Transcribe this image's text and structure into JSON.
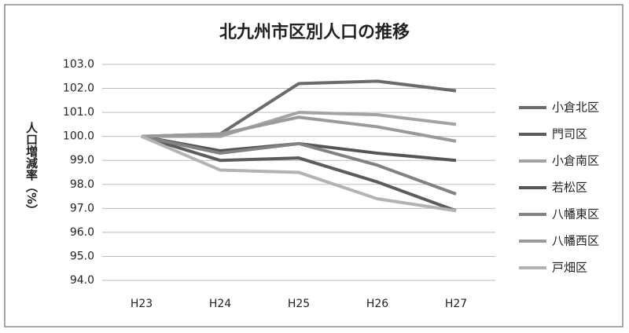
{
  "chart_data": {
    "type": "line",
    "title": "北九州市区別人口の推移",
    "y_label": "人口増減率（%）",
    "categories": [
      "H23",
      "H24",
      "H25",
      "H26",
      "H27"
    ],
    "ylim": [
      94,
      103
    ],
    "yticks": [
      {
        "value": 94,
        "label": "94.0"
      },
      {
        "value": 95,
        "label": "95.0"
      },
      {
        "value": 96,
        "label": "96.0"
      },
      {
        "value": 97,
        "label": "97.0"
      },
      {
        "value": 98,
        "label": "98.0"
      },
      {
        "value": 99,
        "label": "99.0"
      },
      {
        "value": 100,
        "label": "100.0"
      },
      {
        "value": 101,
        "label": "101.0"
      },
      {
        "value": 102,
        "label": "102.0"
      },
      {
        "value": 103,
        "label": "103.0"
      }
    ],
    "grid": true,
    "legend": "right",
    "series": [
      {
        "name": "小倉北区",
        "color": "#6b6b6b",
        "values": [
          100,
          100.1,
          102.2,
          102.3,
          101.9
        ]
      },
      {
        "name": "門司区",
        "color": "#5c5c5c",
        "values": [
          100,
          99.0,
          99.1,
          98.1,
          96.9
        ]
      },
      {
        "name": "小倉南区",
        "color": "#a3a3a3",
        "values": [
          100,
          100.0,
          101.0,
          100.9,
          100.5
        ]
      },
      {
        "name": "若松区",
        "color": "#555555",
        "values": [
          100,
          99.4,
          99.7,
          99.3,
          99.0
        ]
      },
      {
        "name": "八幡東区",
        "color": "#828282",
        "values": [
          100,
          99.3,
          99.7,
          98.8,
          97.6
        ]
      },
      {
        "name": "八幡西区",
        "color": "#9a9a9a",
        "values": [
          100,
          100.1,
          100.8,
          100.4,
          99.8
        ]
      },
      {
        "name": "戸畑区",
        "color": "#b3b3b3",
        "values": [
          100,
          98.6,
          98.5,
          97.4,
          96.9
        ]
      }
    ]
  }
}
